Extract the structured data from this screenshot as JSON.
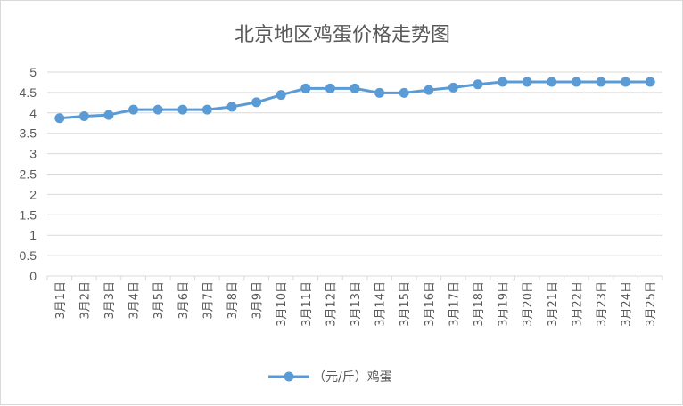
{
  "chart_data": {
    "type": "line",
    "title": "北京地区鸡蛋价格走势图",
    "categories": [
      "3月1日",
      "3月2日",
      "3月3日",
      "3月4日",
      "3月5日",
      "3月6日",
      "3月7日",
      "3月8日",
      "3月9日",
      "3月10日",
      "3月11日",
      "3月12日",
      "3月13日",
      "3月14日",
      "3月15日",
      "3月16日",
      "3月17日",
      "3月18日",
      "3月19日",
      "3月20日",
      "3月21日",
      "3月22日",
      "3月23日",
      "3月24日",
      "3月25日"
    ],
    "series": [
      {
        "name": "（元/斤）鸡蛋",
        "values": [
          3.87,
          3.92,
          3.95,
          4.08,
          4.08,
          4.08,
          4.08,
          4.15,
          4.26,
          4.44,
          4.6,
          4.6,
          4.6,
          4.49,
          4.49,
          4.56,
          4.62,
          4.7,
          4.76,
          4.76,
          4.76,
          4.76,
          4.76,
          4.76,
          4.76
        ]
      }
    ],
    "yticks": [
      "0",
      "0.5",
      "1",
      "1.5",
      "2",
      "2.5",
      "3",
      "3.5",
      "4",
      "4.5",
      "5"
    ],
    "ylim": [
      0,
      5
    ],
    "grid": true,
    "legend_position": "bottom",
    "colors": {
      "series": "#5b9bd5",
      "grid": "#d9d9d9",
      "text": "#595959"
    }
  }
}
